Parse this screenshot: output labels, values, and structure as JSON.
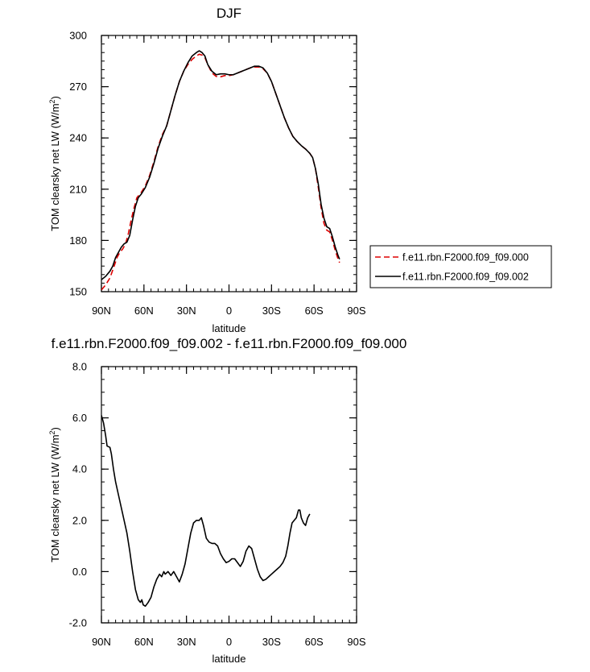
{
  "chart_data": [
    {
      "type": "line",
      "title": "DJF",
      "xlabel": "latitude",
      "ylabel": "TOM clearsky net LW (W/m",
      "ylabel_sup": "2",
      "ylabel_close": ")",
      "xlim": [
        90,
        -90
      ],
      "ylim": [
        150,
        300
      ],
      "x_ticks": [
        90,
        60,
        30,
        0,
        -30,
        -60,
        -90
      ],
      "x_tick_labels": [
        "90N",
        "60N",
        "30N",
        "0",
        "30S",
        "60S",
        "90S"
      ],
      "y_ticks": [
        150,
        180,
        210,
        240,
        270,
        300
      ],
      "y_tick_labels": [
        "150",
        "180",
        "210",
        "240",
        "270",
        "300"
      ],
      "legend_position": "outside-right",
      "series": [
        {
          "name": "f.e11.rbn.F2000.f09_f09.000",
          "color": "#dd0000",
          "style": "dashed",
          "points": [
            [
              90,
              151
            ],
            [
              87,
              154
            ],
            [
              84,
              158
            ],
            [
              81,
              165
            ],
            [
              79,
              170
            ],
            [
              77,
              173
            ],
            [
              75,
              175
            ],
            [
              73,
              178
            ],
            [
              71,
              184
            ],
            [
              69,
              192
            ],
            [
              67,
              199
            ],
            [
              65,
              205
            ],
            [
              62,
              208
            ],
            [
              59,
              212
            ],
            [
              56,
              218
            ],
            [
              53,
              226
            ],
            [
              50,
              235
            ],
            [
              47,
              242
            ],
            [
              44,
              247
            ],
            [
              41,
              256
            ],
            [
              38,
              265
            ],
            [
              35,
              273
            ],
            [
              32,
              279
            ],
            [
              29,
              283
            ],
            [
              26,
              286
            ],
            [
              23,
              288
            ],
            [
              21,
              289
            ],
            [
              19,
              288.5
            ],
            [
              17,
              287
            ],
            [
              15,
              283
            ],
            [
              12,
              278
            ],
            [
              9,
              276
            ],
            [
              6,
              275.8
            ],
            [
              3,
              276.5
            ],
            [
              0,
              276.5
            ],
            [
              -3,
              277
            ],
            [
              -6,
              278
            ],
            [
              -9,
              279
            ],
            [
              -12,
              280
            ],
            [
              -15,
              281
            ],
            [
              -18,
              281.5
            ],
            [
              -21,
              281.5
            ],
            [
              -24,
              280.5
            ],
            [
              -27,
              278
            ],
            [
              -30,
              273
            ],
            [
              -33,
              266
            ],
            [
              -36,
              259
            ],
            [
              -39,
              252
            ],
            [
              -42,
              246
            ],
            [
              -45,
              241
            ],
            [
              -48,
              238
            ],
            [
              -51,
              235.5
            ],
            [
              -54,
              233.5
            ],
            [
              -57,
              231
            ],
            [
              -59,
              228.5
            ],
            [
              -61,
              222
            ],
            [
              -63,
              211
            ],
            [
              -65,
              199
            ],
            [
              -67,
              190
            ],
            [
              -69,
              186
            ],
            [
              -71,
              185
            ],
            [
              -73,
              180
            ],
            [
              -75,
              174
            ],
            [
              -77,
              169
            ],
            [
              -78,
              167
            ]
          ]
        },
        {
          "name": "f.e11.rbn.F2000.f09_f09.002",
          "color": "#000000",
          "style": "solid",
          "points": [
            [
              90,
              157
            ],
            [
              87,
              159
            ],
            [
              84,
              162
            ],
            [
              82,
              165
            ],
            [
              80,
              170
            ],
            [
              78,
              173
            ],
            [
              76,
              176
            ],
            [
              74,
              178
            ],
            [
              72,
              179
            ],
            [
              70,
              183
            ],
            [
              68,
              192
            ],
            [
              66,
              200
            ],
            [
              64,
              205
            ],
            [
              62,
              207
            ],
            [
              59,
              211
            ],
            [
              56,
              217
            ],
            [
              53,
              225
            ],
            [
              50,
              234
            ],
            [
              47,
              241
            ],
            [
              44,
              247
            ],
            [
              41,
              256
            ],
            [
              38,
              265
            ],
            [
              35,
              273
            ],
            [
              32,
              279
            ],
            [
              29,
              284
            ],
            [
              26,
              288
            ],
            [
              23,
              290
            ],
            [
              21,
              291
            ],
            [
              19,
              290
            ],
            [
              17,
              288
            ],
            [
              15,
              283
            ],
            [
              12,
              279
            ],
            [
              9,
              277
            ],
            [
              6,
              277.5
            ],
            [
              3,
              277.5
            ],
            [
              0,
              277
            ],
            [
              -3,
              277
            ],
            [
              -6,
              278
            ],
            [
              -9,
              279
            ],
            [
              -12,
              280
            ],
            [
              -15,
              281
            ],
            [
              -18,
              282
            ],
            [
              -21,
              282
            ],
            [
              -24,
              281
            ],
            [
              -27,
              278
            ],
            [
              -30,
              273
            ],
            [
              -33,
              266
            ],
            [
              -36,
              259
            ],
            [
              -39,
              252
            ],
            [
              -42,
              246
            ],
            [
              -45,
              241
            ],
            [
              -48,
              238
            ],
            [
              -51,
              235.5
            ],
            [
              -54,
              233.5
            ],
            [
              -57,
              231
            ],
            [
              -59,
              228.5
            ],
            [
              -61,
              222
            ],
            [
              -63,
              213
            ],
            [
              -65,
              201
            ],
            [
              -67,
              193
            ],
            [
              -69,
              188
            ],
            [
              -71,
              187
            ],
            [
              -73,
              182
            ],
            [
              -75,
              176
            ],
            [
              -77,
              171
            ],
            [
              -78,
              169
            ]
          ]
        }
      ]
    },
    {
      "type": "line",
      "title": "f.e11.rbn.F2000.f09_f09.002 - f.e11.rbn.F2000.f09_f09.000",
      "xlabel": "latitude",
      "ylabel": "TOM clearsky net LW (W/m",
      "ylabel_sup": "2",
      "ylabel_close": ")",
      "xlim": [
        90,
        -90
      ],
      "ylim": [
        -2.0,
        8.0
      ],
      "x_ticks": [
        90,
        60,
        30,
        0,
        -30,
        -60,
        -90
      ],
      "x_tick_labels": [
        "90N",
        "60N",
        "30N",
        "0",
        "30S",
        "60S",
        "90S"
      ],
      "y_ticks": [
        -2.0,
        0.0,
        2.0,
        4.0,
        6.0,
        8.0
      ],
      "y_tick_labels": [
        "-2.0",
        "0.0",
        "2.0",
        "4.0",
        "6.0",
        "8.0"
      ],
      "series": [
        {
          "name": "",
          "color": "#000000",
          "style": "solid",
          "points": [
            [
              90,
              6.1
            ],
            [
              88.5,
              5.8
            ],
            [
              87,
              5.3
            ],
            [
              86,
              4.9
            ],
            [
              84,
              4.85
            ],
            [
              83,
              4.6
            ],
            [
              81.5,
              4.0
            ],
            [
              80,
              3.5
            ],
            [
              78,
              3.0
            ],
            [
              76,
              2.5
            ],
            [
              74,
              2.0
            ],
            [
              72,
              1.5
            ],
            [
              70,
              0.8
            ],
            [
              68,
              0.0
            ],
            [
              66,
              -0.7
            ],
            [
              64,
              -1.1
            ],
            [
              62.5,
              -1.2
            ],
            [
              61.5,
              -1.1
            ],
            [
              60.5,
              -1.3
            ],
            [
              59,
              -1.35
            ],
            [
              57,
              -1.2
            ],
            [
              55,
              -1.0
            ],
            [
              53,
              -0.6
            ],
            [
              51,
              -0.3
            ],
            [
              49,
              -0.1
            ],
            [
              47.5,
              -0.2
            ],
            [
              46,
              0.0
            ],
            [
              45,
              -0.1
            ],
            [
              43,
              0.0
            ],
            [
              41,
              -0.15
            ],
            [
              39,
              0.0
            ],
            [
              37,
              -0.2
            ],
            [
              35,
              -0.4
            ],
            [
              33,
              -0.1
            ],
            [
              31,
              0.3
            ],
            [
              29,
              0.9
            ],
            [
              27,
              1.5
            ],
            [
              25,
              1.9
            ],
            [
              23,
              2.0
            ],
            [
              21,
              2.0
            ],
            [
              19.5,
              2.1
            ],
            [
              18,
              1.8
            ],
            [
              16,
              1.3
            ],
            [
              14,
              1.15
            ],
            [
              12,
              1.1
            ],
            [
              10,
              1.1
            ],
            [
              8,
              1.0
            ],
            [
              6,
              0.7
            ],
            [
              4,
              0.5
            ],
            [
              2,
              0.35
            ],
            [
              0,
              0.4
            ],
            [
              -2,
              0.5
            ],
            [
              -4,
              0.5
            ],
            [
              -6,
              0.35
            ],
            [
              -8,
              0.2
            ],
            [
              -10,
              0.4
            ],
            [
              -12,
              0.8
            ],
            [
              -14,
              1.0
            ],
            [
              -16,
              0.9
            ],
            [
              -18,
              0.5
            ],
            [
              -20,
              0.1
            ],
            [
              -22,
              -0.2
            ],
            [
              -24,
              -0.35
            ],
            [
              -26,
              -0.3
            ],
            [
              -28,
              -0.2
            ],
            [
              -30,
              -0.1
            ],
            [
              -32,
              0.0
            ],
            [
              -34,
              0.1
            ],
            [
              -36,
              0.2
            ],
            [
              -38,
              0.35
            ],
            [
              -40,
              0.6
            ],
            [
              -41.5,
              1.0
            ],
            [
              -43,
              1.5
            ],
            [
              -44.5,
              1.9
            ],
            [
              -46,
              2.0
            ],
            [
              -47.5,
              2.1
            ],
            [
              -49,
              2.4
            ],
            [
              -50,
              2.4
            ],
            [
              -51,
              2.1
            ],
            [
              -52.5,
              1.9
            ],
            [
              -54,
              1.8
            ],
            [
              -55.5,
              2.1
            ],
            [
              -57,
              2.25
            ]
          ]
        }
      ]
    }
  ]
}
